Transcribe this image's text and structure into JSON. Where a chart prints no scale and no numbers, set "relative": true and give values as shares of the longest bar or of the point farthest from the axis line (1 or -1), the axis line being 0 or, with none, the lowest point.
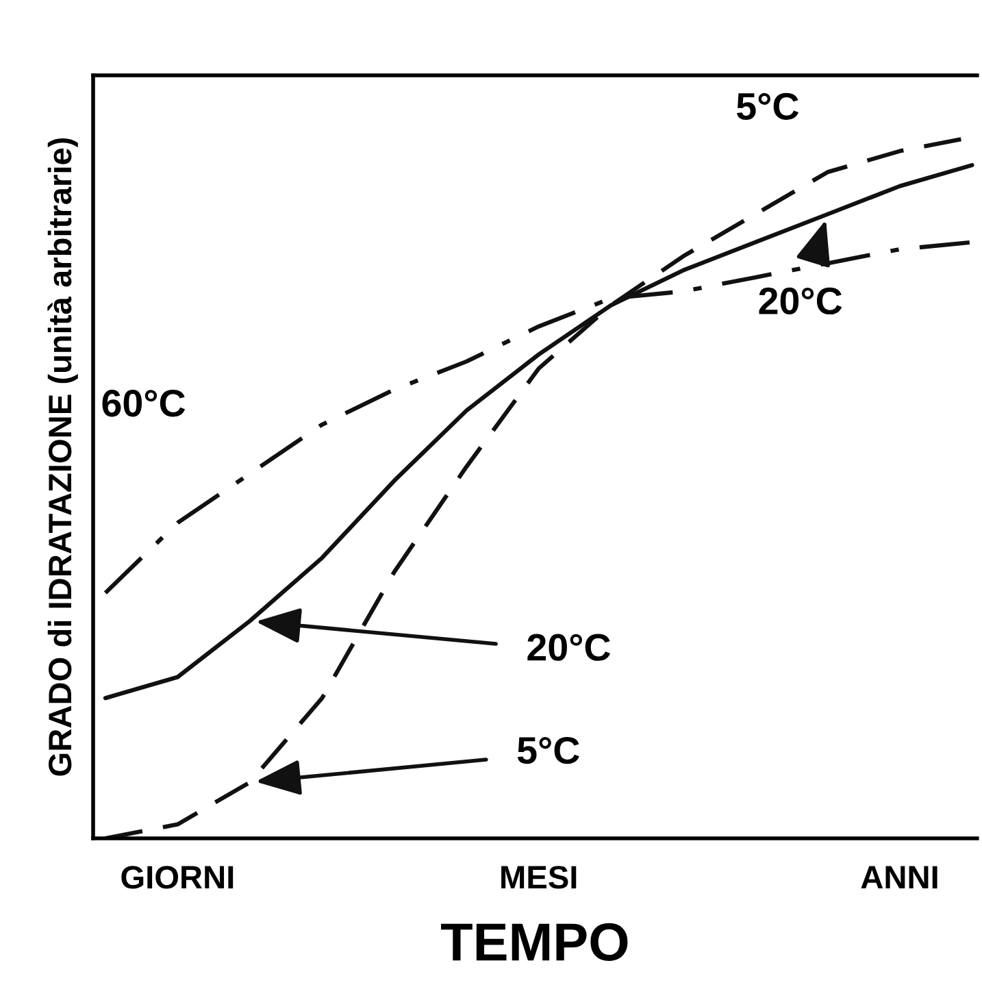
{
  "chart_data": {
    "type": "line",
    "relative": true,
    "xlabel": "TEMPO",
    "ylabel": "GRADO di IDRATAZIONE (unità arbitrarie)",
    "categories": [
      null,
      "GIORNI",
      null,
      null,
      null,
      null,
      "MESI",
      null,
      null,
      null,
      null,
      "ANNI",
      null
    ],
    "grid": false,
    "legend": false,
    "marker": "none",
    "series": [
      {
        "color": "#111111",
        "line_style": "dashdot",
        "values": [
          0.35,
          0.45,
          0.52,
          0.59,
          0.64,
          0.68,
          0.73,
          0.77,
          0.78,
          0.8,
          0.82,
          0.84,
          0.85
        ]
      },
      {
        "color": "#111111",
        "line_style": "solid",
        "values": [
          0.2,
          0.23,
          0.31,
          0.4,
          0.51,
          0.61,
          0.69,
          0.76,
          0.81,
          0.85,
          0.89,
          0.93,
          0.96
        ]
      },
      {
        "color": "#111111",
        "line_style": "dashed",
        "values": [
          0.0,
          0.02,
          0.08,
          0.2,
          0.38,
          0.53,
          0.67,
          0.76,
          0.83,
          0.89,
          0.95,
          0.98,
          1.0
        ]
      }
    ],
    "annotations": [
      "60°C",
      "5°C",
      "20°C",
      "20°C",
      "5°C"
    ]
  }
}
